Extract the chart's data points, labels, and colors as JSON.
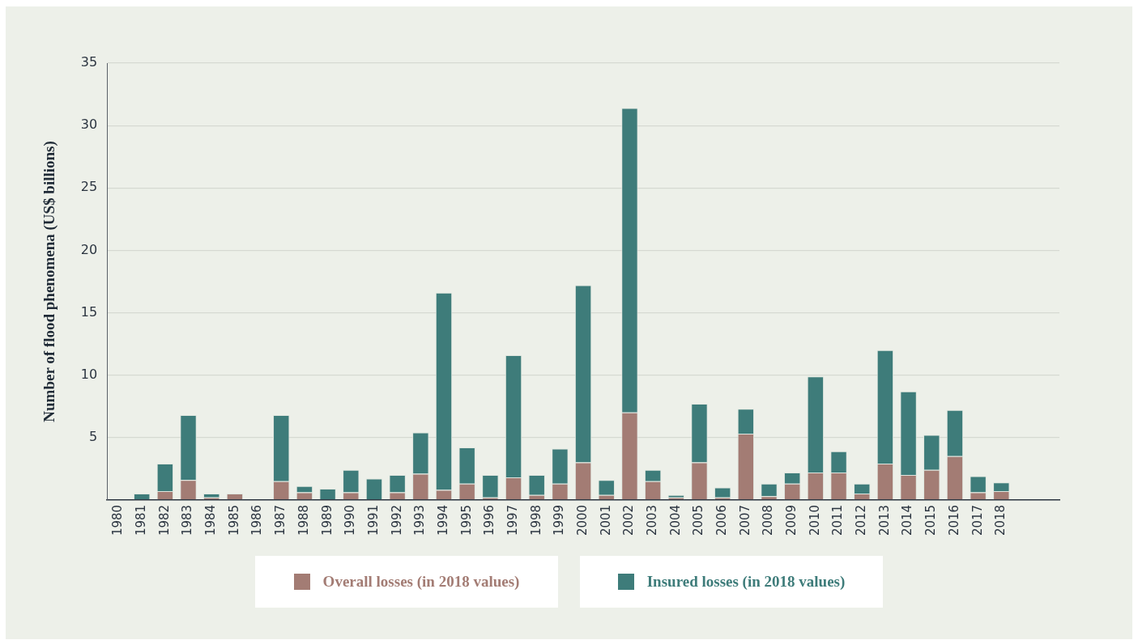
{
  "chart_data": {
    "type": "bar",
    "stacked": true,
    "ylabel": "Number of flood phenomena (US$ billions)",
    "categories": [
      "1980",
      "1981",
      "1982",
      "1983",
      "1984",
      "1985",
      "1986",
      "1987",
      "1988",
      "1989",
      "1990",
      "1991",
      "1992",
      "1993",
      "1994",
      "1995",
      "1996",
      "1997",
      "1998",
      "1999",
      "2000",
      "2001",
      "2002",
      "2003",
      "2004",
      "2005",
      "2006",
      "2007",
      "2008",
      "2009",
      "2010",
      "2011",
      "2012",
      "2013",
      "2014",
      "2015",
      "2016",
      "2017",
      "2018",
      null,
      null
    ],
    "series": [
      {
        "name": "Overall losses (in 2018 values)",
        "color": "#a37c74",
        "values": [
          0,
          0,
          0.7,
          1.6,
          0.2,
          0.5,
          0,
          1.5,
          0.6,
          0,
          0.6,
          0,
          0.6,
          2.1,
          0.8,
          1.3,
          0.2,
          1.8,
          0.4,
          1.3,
          3.0,
          0.4,
          7.0,
          1.5,
          0.2,
          3.0,
          0.2,
          5.3,
          0.3,
          1.3,
          2.2,
          2.2,
          0.5,
          2.9,
          2.0,
          2.4,
          3.5,
          0.6,
          0.7,
          null,
          null
        ]
      },
      {
        "name": "Insured losses (in 2018 values)",
        "color": "#3e7c7a",
        "values": [
          null,
          0.5,
          2.2,
          5.2,
          0.3,
          null,
          null,
          5.3,
          0.5,
          0.9,
          1.8,
          1.7,
          1.4,
          3.3,
          15.8,
          2.9,
          1.8,
          9.8,
          1.6,
          2.8,
          14.2,
          1.2,
          24.4,
          0.9,
          0.2,
          4.7,
          0.8,
          2.0,
          1.0,
          0.9,
          7.7,
          1.7,
          0.8,
          9.1,
          6.7,
          2.8,
          3.7,
          1.3,
          0.7,
          null,
          null
        ]
      }
    ],
    "ylim": [
      0,
      35
    ],
    "yticks": [
      {
        "value": 0,
        "label": null
      },
      5,
      10,
      15,
      20,
      25,
      30,
      35
    ],
    "grid": "y",
    "legend": "bottom"
  }
}
